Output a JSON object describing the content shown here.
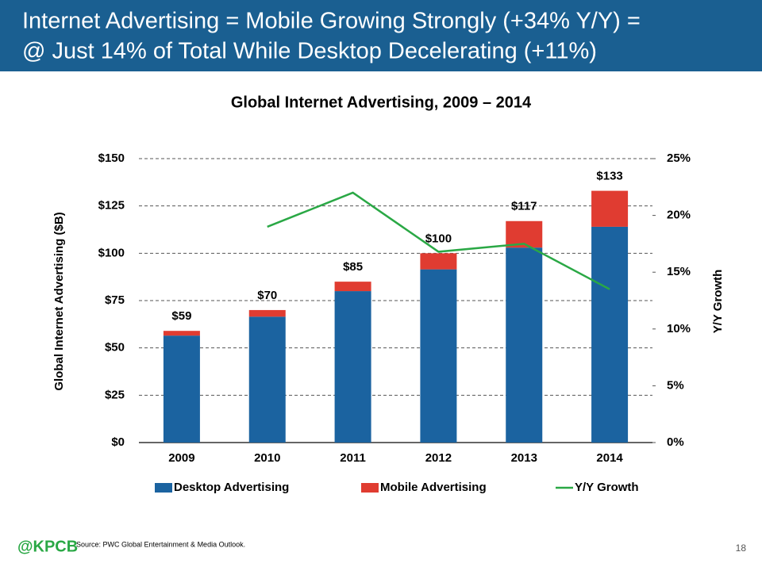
{
  "header": {
    "title_lines": [
      "Internet Advertising = Mobile Growing Strongly (+34% Y/Y) =",
      "@ Just 14% of Total While Desktop Decelerating (+11%)"
    ]
  },
  "chart_data": {
    "type": "stacked-bar-line",
    "title": "Global Internet Advertising, 2009 – 2014",
    "y_label": "Global Internet Advertising ($B)",
    "y2_label": "Y/Y Growth",
    "categories": [
      "2009",
      "2010",
      "2011",
      "2012",
      "2013",
      "2014"
    ],
    "series": [
      {
        "name": "Desktop Advertising",
        "color": "#1b63a0",
        "kind": "bar",
        "values": [
          56.5,
          66.5,
          80,
          91.5,
          103,
          114
        ]
      },
      {
        "name": "Mobile Advertising",
        "color": "#e03c31",
        "kind": "bar",
        "values": [
          2.5,
          3.5,
          5,
          8.5,
          14,
          19
        ]
      },
      {
        "name": "Y/Y Growth",
        "color": "#2aa845",
        "kind": "line",
        "axis": "y2",
        "values": [
          null,
          19,
          22,
          16.8,
          17.5,
          13.5
        ]
      }
    ],
    "totals": {
      "values": [
        59,
        70,
        85,
        100,
        117,
        133
      ],
      "value_labels": [
        "$59",
        "$70",
        "$85",
        "$100",
        "$117",
        "$133"
      ]
    },
    "ylim": [
      0,
      150
    ],
    "yticks": [
      {
        "value": 0,
        "label": "$0"
      },
      {
        "value": 25,
        "label": "$25"
      },
      {
        "value": 50,
        "label": "$50"
      },
      {
        "value": 75,
        "label": "$75"
      },
      {
        "value": 100,
        "label": "$100"
      },
      {
        "value": 125,
        "label": "$125"
      },
      {
        "value": 150,
        "label": "$150"
      }
    ],
    "y2lim": [
      0,
      25
    ],
    "y2ticks": [
      {
        "value": 0,
        "label": "0%"
      },
      {
        "value": 5,
        "label": "5%"
      },
      {
        "value": 10,
        "label": "10%"
      },
      {
        "value": 15,
        "label": "15%"
      },
      {
        "value": 20,
        "label": "20%"
      },
      {
        "value": 25,
        "label": "25%"
      }
    ],
    "grid": true
  },
  "footer": {
    "logo": "@KPCB",
    "source": "Source: PWC Global Entertainment & Media Outlook.",
    "page": "18"
  }
}
